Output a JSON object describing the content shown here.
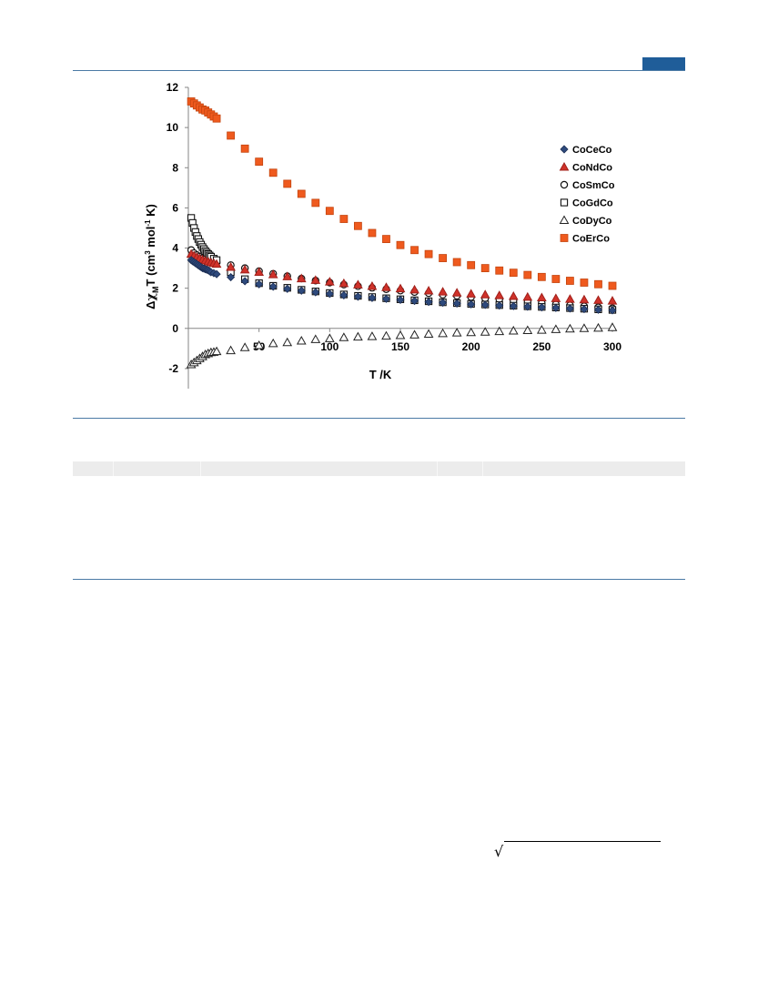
{
  "chart_data": {
    "type": "scatter",
    "title": "",
    "xlabel": "T /K",
    "ylabel": "ΔχMT (cm³ mol⁻¹ K)",
    "ylabel_parts": {
      "delta": "Δ",
      "chi": "χ",
      "sub": "M",
      "t": "T (cm",
      "sup3": "3",
      "mol": " mol",
      "supm1": "-1",
      "end": " K)"
    },
    "xlim": [
      0,
      300
    ],
    "ylim": [
      -3,
      12
    ],
    "x_ticks": [
      "50",
      "100",
      "150",
      "200",
      "250",
      "300"
    ],
    "x_tick_values": [
      50,
      100,
      150,
      200,
      250,
      300
    ],
    "y_ticks": [
      "12",
      "10",
      "8",
      "6",
      "4",
      "2",
      "0",
      "-2"
    ],
    "y_tick_values": [
      12,
      10,
      8,
      6,
      4,
      2,
      0,
      -2
    ],
    "grid": false,
    "legend_position": "right",
    "series": [
      {
        "name": "CoCeCo",
        "marker": "diamond",
        "color": "#2e4a7d",
        "stroke": "#1c2f55",
        "x": [
          2,
          3,
          4,
          5,
          6,
          7,
          8,
          9,
          10,
          11,
          12,
          13,
          14,
          15,
          16,
          18,
          20,
          30,
          40,
          50,
          60,
          70,
          80,
          90,
          100,
          110,
          120,
          130,
          140,
          150,
          160,
          170,
          180,
          190,
          200,
          210,
          220,
          230,
          240,
          250,
          260,
          270,
          280,
          290,
          300
        ],
        "y": [
          3.4,
          3.35,
          3.3,
          3.25,
          3.2,
          3.15,
          3.1,
          3.05,
          3.0,
          2.98,
          2.95,
          2.92,
          2.9,
          2.85,
          2.8,
          2.75,
          2.7,
          2.55,
          2.35,
          2.2,
          2.08,
          1.97,
          1.88,
          1.8,
          1.72,
          1.65,
          1.58,
          1.52,
          1.47,
          1.42,
          1.37,
          1.32,
          1.28,
          1.24,
          1.2,
          1.17,
          1.14,
          1.11,
          1.08,
          1.05,
          1.02,
          0.99,
          0.96,
          0.93,
          0.9
        ]
      },
      {
        "name": "CoNdCo",
        "marker": "triangle",
        "color": "#d0322a",
        "stroke": "#a0201a",
        "x": [
          2,
          4,
          6,
          8,
          10,
          12,
          14,
          16,
          18,
          20,
          30,
          40,
          50,
          60,
          70,
          80,
          90,
          100,
          110,
          120,
          130,
          140,
          150,
          160,
          170,
          180,
          190,
          200,
          210,
          220,
          230,
          240,
          250,
          260,
          270,
          280,
          290,
          300
        ],
        "y": [
          3.7,
          3.62,
          3.55,
          3.48,
          3.42,
          3.37,
          3.32,
          3.28,
          3.24,
          3.2,
          3.05,
          2.92,
          2.8,
          2.68,
          2.58,
          2.48,
          2.4,
          2.32,
          2.24,
          2.17,
          2.1,
          2.04,
          1.98,
          1.92,
          1.87,
          1.82,
          1.77,
          1.72,
          1.68,
          1.64,
          1.6,
          1.56,
          1.53,
          1.49,
          1.46,
          1.43,
          1.4,
          1.37
        ]
      },
      {
        "name": "CoSmCo",
        "marker": "circle",
        "color": "#ffffff",
        "stroke": "#111111",
        "x": [
          2,
          4,
          6,
          8,
          10,
          12,
          14,
          16,
          18,
          20,
          30,
          40,
          50,
          60,
          70,
          80,
          90,
          100,
          110,
          120,
          130,
          140,
          150,
          160,
          170,
          180,
          190,
          200,
          210,
          220,
          230,
          240,
          250,
          260,
          270,
          280,
          290,
          300
        ],
        "y": [
          3.9,
          3.75,
          3.65,
          3.57,
          3.5,
          3.45,
          3.4,
          3.36,
          3.32,
          3.28,
          3.15,
          3.0,
          2.85,
          2.72,
          2.6,
          2.48,
          2.38,
          2.28,
          2.18,
          2.1,
          2.02,
          1.95,
          1.88,
          1.81,
          1.75,
          1.68,
          1.62,
          1.56,
          1.5,
          1.44,
          1.38,
          1.32,
          1.26,
          1.2,
          1.15,
          1.1,
          1.05,
          1.0
        ]
      },
      {
        "name": "CoGdCo",
        "marker": "square",
        "color": "#ffffff",
        "stroke": "#111111",
        "x": [
          2,
          3,
          4,
          5,
          6,
          7,
          8,
          9,
          10,
          11,
          12,
          13,
          14,
          15,
          16,
          18,
          20,
          30,
          40,
          50,
          60,
          70,
          80,
          90,
          100,
          110,
          120,
          130,
          140,
          150,
          160,
          170,
          180,
          190,
          200,
          210,
          220,
          230,
          240,
          250,
          260,
          270,
          280,
          290,
          300
        ],
        "y": [
          5.5,
          5.25,
          5.0,
          4.8,
          4.6,
          4.45,
          4.3,
          4.17,
          4.05,
          3.95,
          3.85,
          3.77,
          3.7,
          3.63,
          3.57,
          3.47,
          3.4,
          2.8,
          2.45,
          2.25,
          2.12,
          2.02,
          1.92,
          1.84,
          1.76,
          1.69,
          1.62,
          1.56,
          1.5,
          1.45,
          1.4,
          1.35,
          1.3,
          1.26,
          1.22,
          1.19,
          1.16,
          1.13,
          1.1,
          1.07,
          1.04,
          1.01,
          0.98,
          0.95,
          0.92
        ]
      },
      {
        "name": "CoDyCo",
        "marker": "triangle-open",
        "color": "#ffffff",
        "stroke": "#222222",
        "x": [
          2,
          4,
          6,
          8,
          10,
          12,
          14,
          16,
          18,
          20,
          30,
          40,
          50,
          60,
          70,
          80,
          90,
          100,
          110,
          120,
          130,
          140,
          150,
          160,
          170,
          180,
          190,
          200,
          210,
          220,
          230,
          240,
          250,
          260,
          270,
          280,
          290,
          300
        ],
        "y": [
          -1.8,
          -1.7,
          -1.6,
          -1.5,
          -1.4,
          -1.3,
          -1.25,
          -1.2,
          -1.18,
          -1.15,
          -1.1,
          -0.95,
          -0.85,
          -0.75,
          -0.7,
          -0.62,
          -0.55,
          -0.5,
          -0.45,
          -0.42,
          -0.4,
          -0.38,
          -0.35,
          -0.32,
          -0.28,
          -0.25,
          -0.22,
          -0.2,
          -0.18,
          -0.15,
          -0.12,
          -0.1,
          -0.08,
          -0.05,
          -0.02,
          0.0,
          0.02,
          0.05
        ]
      },
      {
        "name": "CoErCo",
        "marker": "square-filled",
        "color": "#ef5a1e",
        "stroke": "#c4450f",
        "x": [
          2,
          4,
          6,
          8,
          10,
          12,
          14,
          16,
          18,
          20,
          30,
          40,
          50,
          60,
          70,
          80,
          90,
          100,
          110,
          120,
          130,
          140,
          150,
          160,
          170,
          180,
          190,
          200,
          210,
          220,
          230,
          240,
          250,
          260,
          270,
          280,
          290,
          300
        ],
        "y": [
          11.3,
          11.2,
          11.1,
          11.0,
          10.9,
          10.85,
          10.75,
          10.65,
          10.55,
          10.45,
          9.6,
          8.95,
          8.3,
          7.75,
          7.2,
          6.7,
          6.25,
          5.85,
          5.45,
          5.1,
          4.75,
          4.45,
          4.15,
          3.9,
          3.7,
          3.5,
          3.3,
          3.15,
          3.0,
          2.88,
          2.77,
          2.66,
          2.56,
          2.46,
          2.37,
          2.28,
          2.2,
          2.12
        ]
      }
    ]
  }
}
